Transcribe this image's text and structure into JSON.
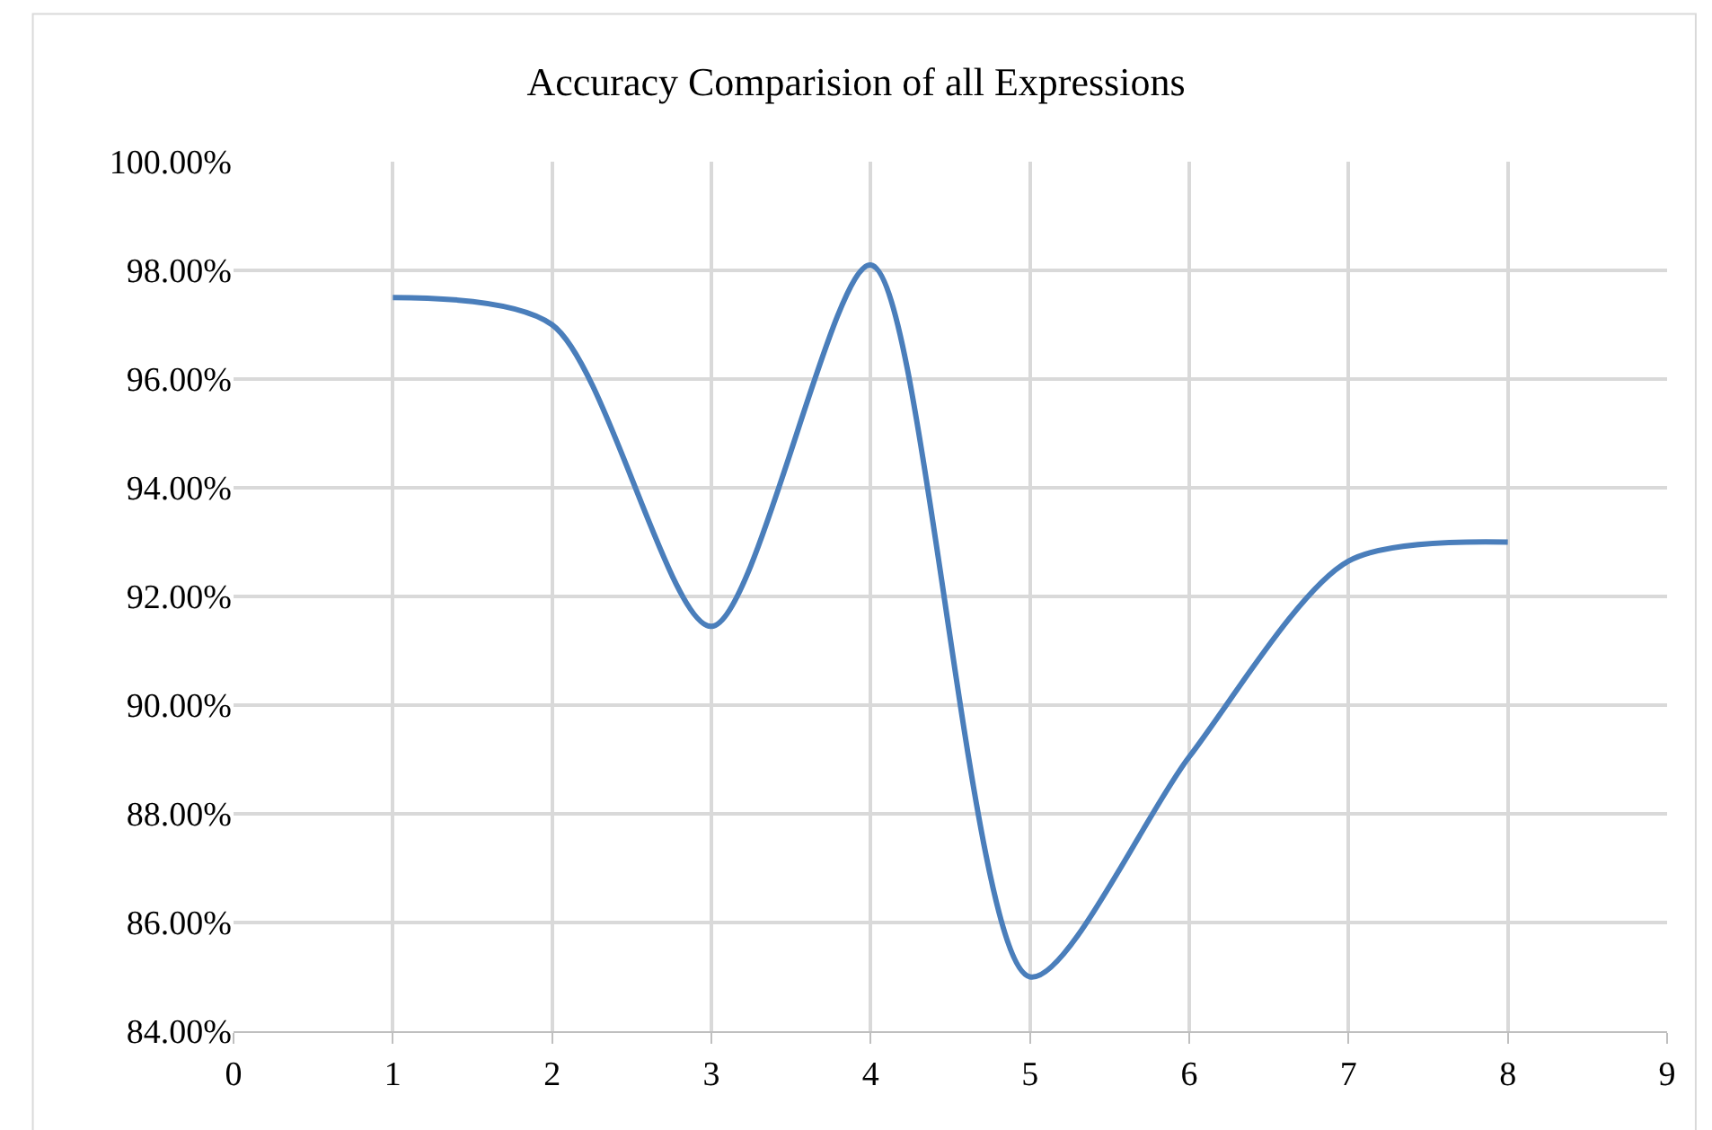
{
  "chart_data": {
    "type": "line",
    "title": "Accuracy Comparision of all Expressions",
    "x": [
      1,
      2,
      3,
      4,
      5,
      6,
      7,
      8
    ],
    "series": [
      {
        "color": "#4a7ebb",
        "values": [
          97.5,
          97.0,
          91.45,
          98.1,
          85.0,
          89.05,
          92.65,
          93.0
        ]
      }
    ],
    "xlim": [
      0,
      9
    ],
    "xticks": [
      0,
      1,
      2,
      3,
      4,
      5,
      6,
      7,
      8,
      9
    ],
    "ylim": [
      84,
      100
    ],
    "yticks": [
      {
        "value": 84,
        "label": "84.00%"
      },
      {
        "value": 86,
        "label": "86.00%"
      },
      {
        "value": 88,
        "label": "88.00%"
      },
      {
        "value": 90,
        "label": "90.00%"
      },
      {
        "value": 92,
        "label": "92.00%"
      },
      {
        "value": 94,
        "label": "94.00%"
      },
      {
        "value": 96,
        "label": "96.00%"
      },
      {
        "value": 98,
        "label": "98.00%"
      },
      {
        "value": 100,
        "label": "100.00%"
      }
    ],
    "grid": true,
    "marker": "none",
    "line_style": "solid"
  }
}
